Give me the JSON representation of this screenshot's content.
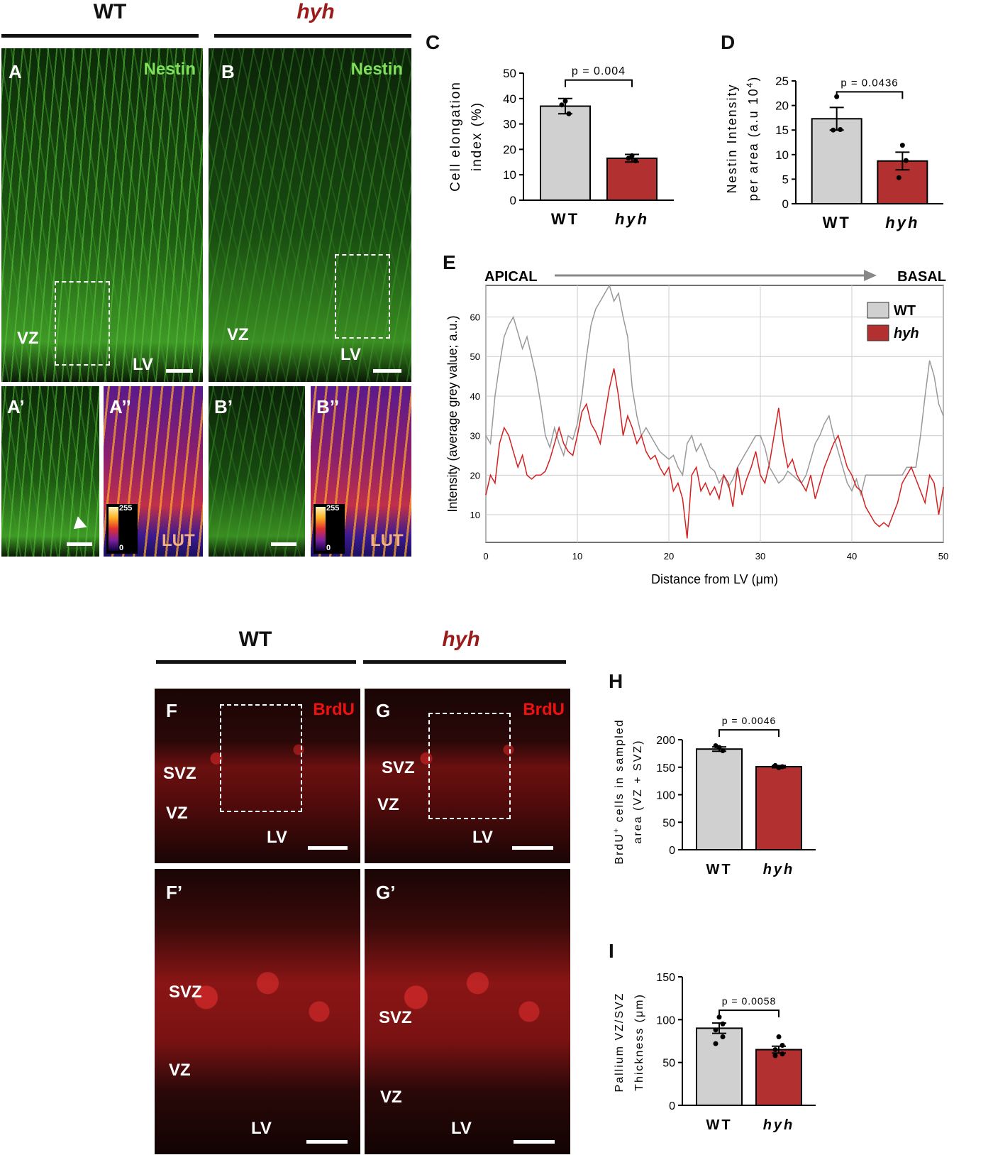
{
  "panel_letters": {
    "A": "A",
    "B": "B",
    "A1": "A’",
    "A2": "A’’",
    "B1": "B’",
    "B2": "B’’",
    "C": "C",
    "D": "D",
    "E": "E",
    "F": "F",
    "G": "G",
    "F1": "F’",
    "G1": "G’",
    "H": "H",
    "I": "I"
  },
  "group_headers": {
    "wt": "WT",
    "hyh": "hyh"
  },
  "image_labels": {
    "nestin": "Nestin",
    "brdu": "BrdU",
    "vz": "VZ",
    "svz": "SVZ",
    "lv": "LV",
    "lut": "LUT",
    "lut_max": "255",
    "lut_min": "0"
  },
  "colors": {
    "wt": "#d0d0d0",
    "hyh": "#b23030",
    "wt_line": "#999999",
    "hyh_line": "#d42020"
  },
  "chart_data": [
    {
      "id": "C",
      "type": "bar",
      "categories": [
        "WT",
        "hyh"
      ],
      "values": [
        37,
        16.5
      ],
      "errors": [
        3,
        1.5
      ],
      "points": [
        [
          39,
          34,
          37.5
        ],
        [
          17.5,
          15.5,
          16.5
        ]
      ],
      "ylabel_lines": [
        "Cell elongation",
        "index (%)"
      ],
      "ylim": [
        0,
        50
      ],
      "yticks": [
        0,
        10,
        20,
        30,
        40,
        50
      ],
      "pvalue": "p = 0.004"
    },
    {
      "id": "D",
      "type": "bar",
      "categories": [
        "WT",
        "hyh"
      ],
      "values": [
        17.3,
        8.7
      ],
      "errors": [
        2.3,
        1.8
      ],
      "points": [
        [
          21.8,
          15.1,
          15.0
        ],
        [
          11.9,
          8.8,
          5.3
        ]
      ],
      "ylabel_lines": [
        "Nestin Intensity",
        "per area (a.u 10",
        "4",
        ")"
      ],
      "ylim": [
        0,
        25
      ],
      "yticks": [
        0,
        5,
        10,
        15,
        20,
        25
      ],
      "pvalue": "p = 0.0436"
    },
    {
      "id": "E",
      "type": "line",
      "xlabel": "Distance from LV (μm)",
      "ylabel": "Intensity (average grey value; a.u.)",
      "xlim": [
        0,
        50
      ],
      "ylim": [
        3,
        68
      ],
      "xticks": [
        0,
        10,
        20,
        30,
        40,
        50
      ],
      "yticks": [
        10,
        20,
        30,
        40,
        50,
        60
      ],
      "apical": "APICAL",
      "basal": "BASAL",
      "series": [
        {
          "name": "WT",
          "x": [
            0,
            0.5,
            1,
            1.5,
            2,
            2.5,
            3,
            3.5,
            4,
            4.5,
            5,
            5.5,
            6,
            6.5,
            7,
            7.5,
            8,
            8.5,
            9,
            9.5,
            10,
            10.5,
            11,
            11.5,
            12,
            12.5,
            13,
            13.5,
            14,
            14.5,
            15,
            15.5,
            16,
            16.5,
            17,
            17.5,
            18,
            18.5,
            19,
            19.5,
            20,
            20.5,
            21,
            21.5,
            22,
            22.5,
            23,
            23.5,
            24,
            24.5,
            25,
            25.5,
            26,
            26.5,
            27,
            27.5,
            28,
            28.5,
            29,
            29.5,
            30,
            30.5,
            31,
            31.5,
            32,
            32.5,
            33,
            33.5,
            34,
            34.5,
            35,
            35.5,
            36,
            36.5,
            37,
            37.5,
            38,
            38.5,
            39,
            39.5,
            40,
            40.5,
            41,
            41.5,
            42,
            42.5,
            43,
            43.5,
            44,
            44.5,
            45,
            45.5,
            46,
            46.5,
            47,
            47.5,
            48,
            48.5,
            49,
            49.5,
            50
          ],
          "y": [
            30,
            28,
            40,
            48,
            55,
            58,
            60,
            56,
            52,
            55,
            50,
            45,
            38,
            30,
            27,
            32,
            28,
            25,
            30,
            29,
            33,
            40,
            50,
            58,
            62,
            64,
            66,
            68,
            64,
            66,
            60,
            55,
            42,
            35,
            30,
            32,
            30,
            28,
            26,
            25,
            24,
            25,
            22,
            20,
            28,
            30,
            26,
            28,
            25,
            22,
            21,
            18,
            20,
            17,
            19,
            22,
            24,
            26,
            28,
            30,
            30,
            27,
            22,
            20,
            18,
            19,
            21,
            20,
            19,
            18,
            20,
            24,
            28,
            30,
            33,
            35,
            30,
            26,
            22,
            18,
            16,
            19,
            15,
            20,
            20,
            20,
            20,
            20,
            20,
            20,
            20,
            20,
            22,
            22,
            22,
            30,
            40,
            49,
            45,
            38,
            35
          ]
        },
        {
          "name": "hyh",
          "x": [
            0,
            0.5,
            1,
            1.5,
            2,
            2.5,
            3,
            3.5,
            4,
            4.5,
            5,
            5.5,
            6,
            6.5,
            7,
            7.5,
            8,
            8.5,
            9,
            9.5,
            10,
            10.5,
            11,
            11.5,
            12,
            12.5,
            13,
            13.5,
            14,
            14.5,
            15,
            15.5,
            16,
            16.5,
            17,
            17.5,
            18,
            18.5,
            19,
            19.5,
            20,
            20.5,
            21,
            21.5,
            22,
            22.5,
            23,
            23.5,
            24,
            24.5,
            25,
            25.5,
            26,
            26.5,
            27,
            27.5,
            28,
            28.5,
            29,
            29.5,
            30,
            30.5,
            31,
            31.5,
            32,
            32.5,
            33,
            33.5,
            34,
            34.5,
            35,
            35.5,
            36,
            36.5,
            37,
            37.5,
            38,
            38.5,
            39,
            39.5,
            40,
            40.5,
            41,
            41.5,
            42,
            42.5,
            43,
            43.5,
            44,
            44.5,
            45,
            45.5,
            46,
            46.5,
            47,
            47.5,
            48,
            48.5,
            49,
            49.5,
            50
          ],
          "y": [
            15,
            20,
            18,
            28,
            32,
            30,
            26,
            22,
            25,
            20,
            19,
            20,
            20,
            21,
            24,
            28,
            32,
            28,
            26,
            25,
            30,
            36,
            38,
            33,
            31,
            28,
            35,
            42,
            47,
            40,
            30,
            35,
            32,
            28,
            30,
            26,
            24,
            25,
            22,
            20,
            22,
            16,
            18,
            14,
            4,
            20,
            22,
            16,
            18,
            15,
            17,
            14,
            20,
            18,
            12,
            22,
            15,
            19,
            22,
            26,
            20,
            18,
            23,
            30,
            37,
            28,
            22,
            24,
            20,
            18,
            16,
            20,
            14,
            18,
            22,
            25,
            28,
            30,
            26,
            22,
            20,
            17,
            16,
            12,
            10,
            8,
            7,
            8,
            7,
            10,
            13,
            18,
            20,
            22,
            19,
            16,
            13,
            20,
            18,
            10,
            17
          ]
        }
      ]
    },
    {
      "id": "H",
      "type": "bar",
      "categories": [
        "WT",
        "hyh"
      ],
      "values": [
        183,
        151
      ],
      "errors": [
        4,
        2
      ],
      "points": [
        [
          186,
          180,
          189
        ],
        [
          149,
          151,
          153
        ]
      ],
      "ylabel_lines": [
        "BrdU",
        "+",
        " cells in sampled",
        "area (VZ + SVZ)"
      ],
      "ylim": [
        0,
        200
      ],
      "yticks": [
        0,
        50,
        100,
        150,
        200
      ],
      "pvalue": "p = 0.0046"
    },
    {
      "id": "I",
      "type": "bar",
      "categories": [
        "WT",
        "hyh"
      ],
      "values": [
        90,
        65
      ],
      "errors": [
        6,
        4
      ],
      "points": [
        [
          103,
          95,
          88,
          80,
          72
        ],
        [
          80,
          70,
          65,
          60,
          58
        ]
      ],
      "ylabel_lines": [
        "Pallium VZ/SVZ",
        "Thickness (μm)"
      ],
      "ylim": [
        0,
        150
      ],
      "yticks": [
        0,
        50,
        100,
        150
      ],
      "pvalue": "p = 0.0058"
    }
  ]
}
